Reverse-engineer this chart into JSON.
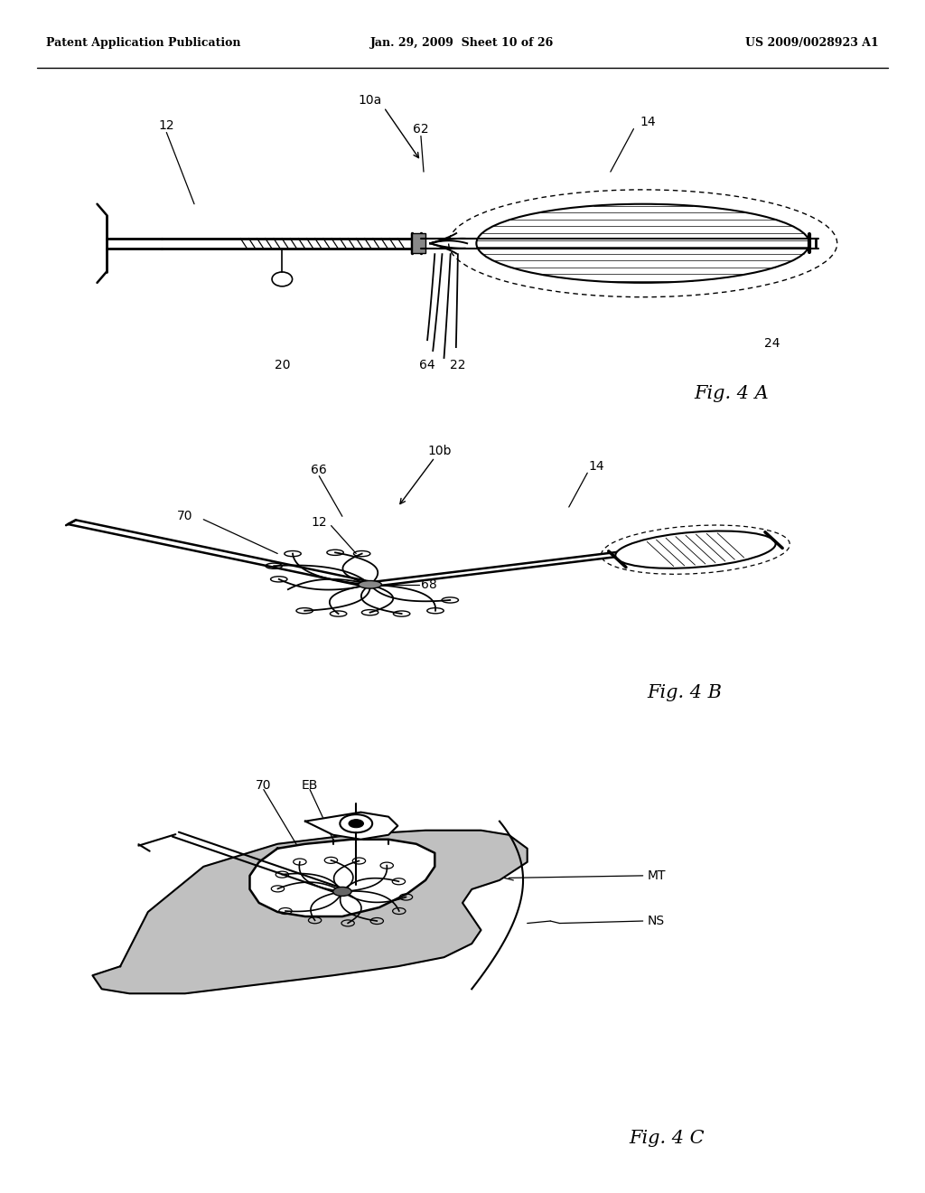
{
  "background_color": "#ffffff",
  "header_left": "Patent Application Publication",
  "header_center": "Jan. 29, 2009  Sheet 10 of 26",
  "header_right": "US 2009/0028923 A1",
  "fig4a_label": "Fig. 4 A",
  "fig4b_label": "Fig. 4 B",
  "fig4c_label": "Fig. 4 C",
  "gray_tissue": "#c0c0c0"
}
